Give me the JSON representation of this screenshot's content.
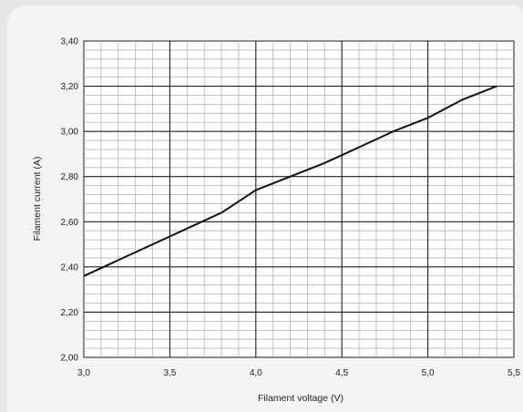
{
  "chart_data": {
    "type": "line",
    "title": "",
    "xlabel": "Filament voltage (V)",
    "ylabel": "Filament current (A)",
    "xlim": [
      3.0,
      5.5
    ],
    "ylim": [
      2.0,
      3.4
    ],
    "grid": true,
    "x_ticks": [
      "3,0",
      "3,5",
      "4,0",
      "4,5",
      "5,0",
      "5,5"
    ],
    "y_ticks": [
      "2,00",
      "2,20",
      "2,40",
      "2,60",
      "2,80",
      "3,00",
      "3,20",
      "3,40"
    ],
    "series": [
      {
        "color": "#111111",
        "x": [
          3.0,
          3.2,
          3.4,
          3.6,
          3.8,
          4.0,
          4.2,
          4.4,
          4.6,
          4.8,
          5.0,
          5.2,
          5.4
        ],
        "y": [
          2.36,
          2.43,
          2.5,
          2.57,
          2.64,
          2.74,
          2.8,
          2.86,
          2.93,
          3.0,
          3.06,
          3.14,
          3.2
        ]
      }
    ]
  }
}
